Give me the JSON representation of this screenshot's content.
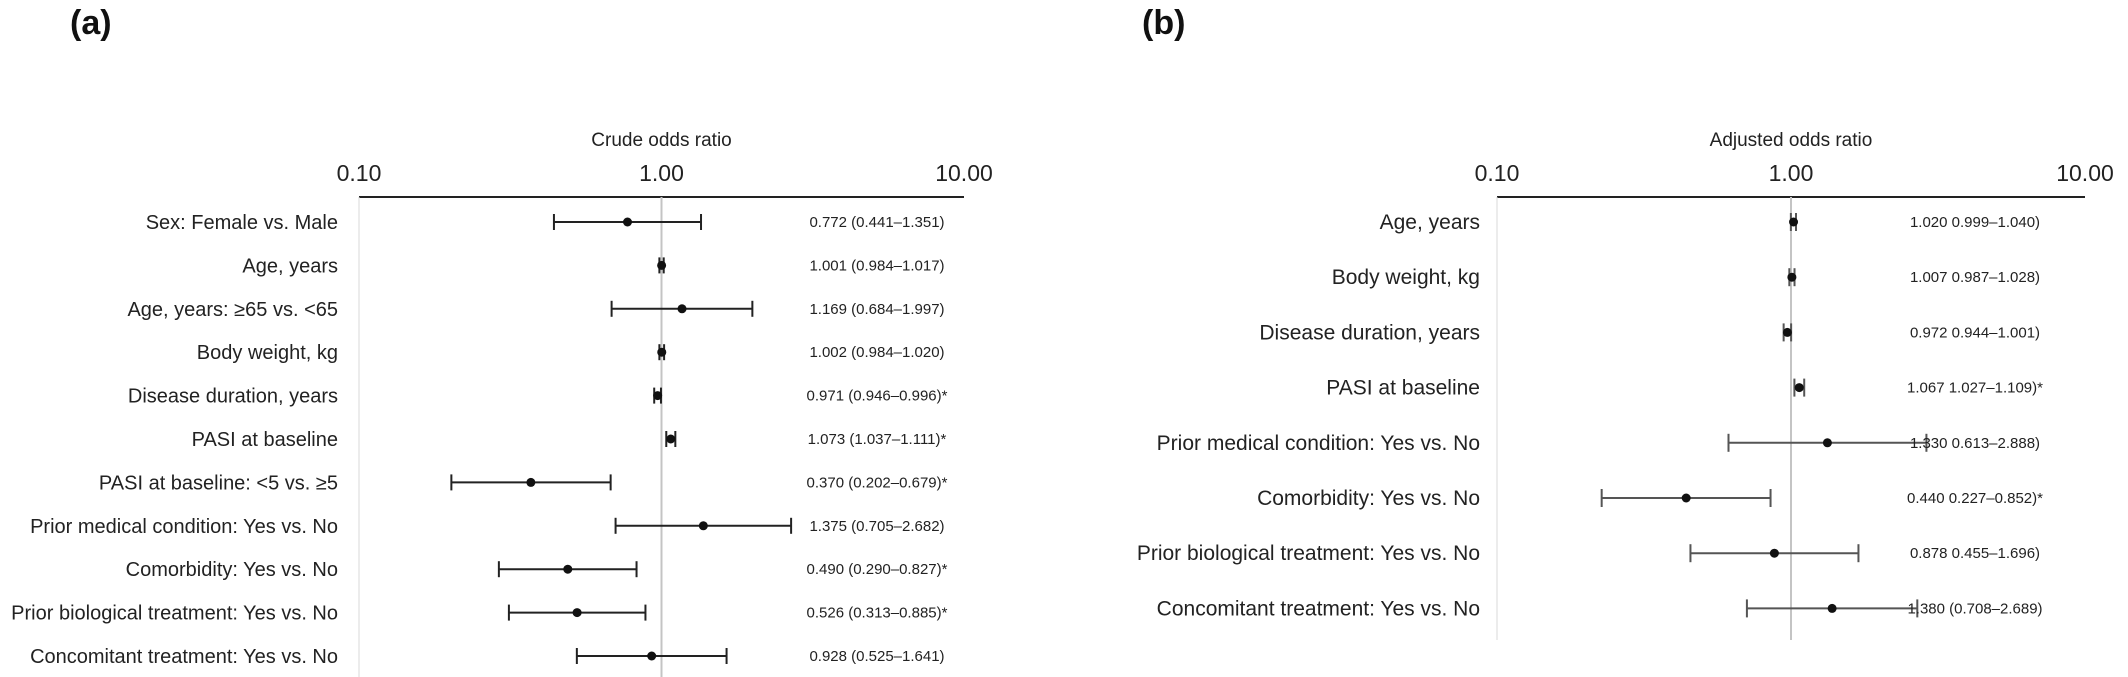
{
  "chart_data": [
    {
      "type": "forest",
      "panel": "(a)",
      "title": "Crude odds ratio",
      "scale": "log",
      "xlim": [
        0.1,
        10
      ],
      "ticks": [
        "0.10",
        "1.00",
        "10.00"
      ],
      "tick_values": [
        0.1,
        1,
        10
      ],
      "reference_line": 1,
      "rows": [
        {
          "label": "Sex: Female vs. Male",
          "or": 0.772,
          "lo": 0.441,
          "hi": 1.351,
          "text": "0.772 (0.441–1.351)"
        },
        {
          "label": "Age, years",
          "or": 1.001,
          "lo": 0.984,
          "hi": 1.017,
          "text": "1.001 (0.984–1.017)"
        },
        {
          "label": "Age, years: ≥65 vs. <65",
          "or": 1.169,
          "lo": 0.684,
          "hi": 1.997,
          "text": "1.169 (0.684–1.997)"
        },
        {
          "label": "Body weight, kg",
          "or": 1.002,
          "lo": 0.984,
          "hi": 1.02,
          "text": "1.002 (0.984–1.020)"
        },
        {
          "label": "Disease duration, years",
          "or": 0.971,
          "lo": 0.946,
          "hi": 0.996,
          "text": "0.971 (0.946–0.996)*"
        },
        {
          "label": "PASI at baseline",
          "or": 1.073,
          "lo": 1.037,
          "hi": 1.111,
          "text": "1.073 (1.037–1.111)*"
        },
        {
          "label": "PASI at baseline: <5 vs. ≥5",
          "or": 0.37,
          "lo": 0.202,
          "hi": 0.679,
          "text": "0.370 (0.202–0.679)*"
        },
        {
          "label": "Prior medical condition: Yes vs. No",
          "or": 1.375,
          "lo": 0.705,
          "hi": 2.682,
          "text": "1.375 (0.705–2.682)"
        },
        {
          "label": "Comorbidity: Yes vs. No",
          "or": 0.49,
          "lo": 0.29,
          "hi": 0.827,
          "text": "0.490 (0.290–0.827)*"
        },
        {
          "label": "Prior biological treatment: Yes vs. No",
          "or": 0.526,
          "lo": 0.313,
          "hi": 0.885,
          "text": "0.526 (0.313–0.885)*"
        },
        {
          "label": "Concomitant treatment: Yes vs. No",
          "or": 0.928,
          "lo": 0.525,
          "hi": 1.641,
          "text": "0.928 (0.525–1.641)"
        }
      ]
    },
    {
      "type": "forest",
      "panel": "(b)",
      "title": "Adjusted odds ratio",
      "scale": "log",
      "xlim": [
        0.1,
        10
      ],
      "ticks": [
        "0.10",
        "1.00",
        "10.00"
      ],
      "tick_values": [
        0.1,
        1,
        10
      ],
      "reference_line": 1,
      "rows": [
        {
          "label": "Age, years",
          "or": 1.02,
          "lo": 0.999,
          "hi": 1.04,
          "text": "1.020  0.999–1.040)"
        },
        {
          "label": "Body weight, kg",
          "or": 1.007,
          "lo": 0.987,
          "hi": 1.028,
          "text": "1.007  0.987–1.028)"
        },
        {
          "label": "Disease duration, years",
          "or": 0.972,
          "lo": 0.944,
          "hi": 1.001,
          "text": "0.972  0.944–1.001)"
        },
        {
          "label": "PASI at baseline",
          "or": 1.067,
          "lo": 1.027,
          "hi": 1.109,
          "text": "1.067  1.027–1.109)*"
        },
        {
          "label": "Prior medical condition: Yes vs. No",
          "or": 1.33,
          "lo": 0.613,
          "hi": 2.888,
          "text": "1.330  0.613–2.888)"
        },
        {
          "label": "Comorbidity: Yes vs. No",
          "or": 0.44,
          "lo": 0.227,
          "hi": 0.852,
          "text": "0.440  0.227–0.852)*"
        },
        {
          "label": "Prior biological treatment: Yes vs. No",
          "or": 0.878,
          "lo": 0.455,
          "hi": 1.696,
          "text": "0.878  0.455–1.696)"
        },
        {
          "label": "Concomitant treatment: Yes vs. No",
          "or": 1.38,
          "lo": 0.708,
          "hi": 2.689,
          "text": "1.380 (0.708–2.689)"
        }
      ]
    }
  ]
}
